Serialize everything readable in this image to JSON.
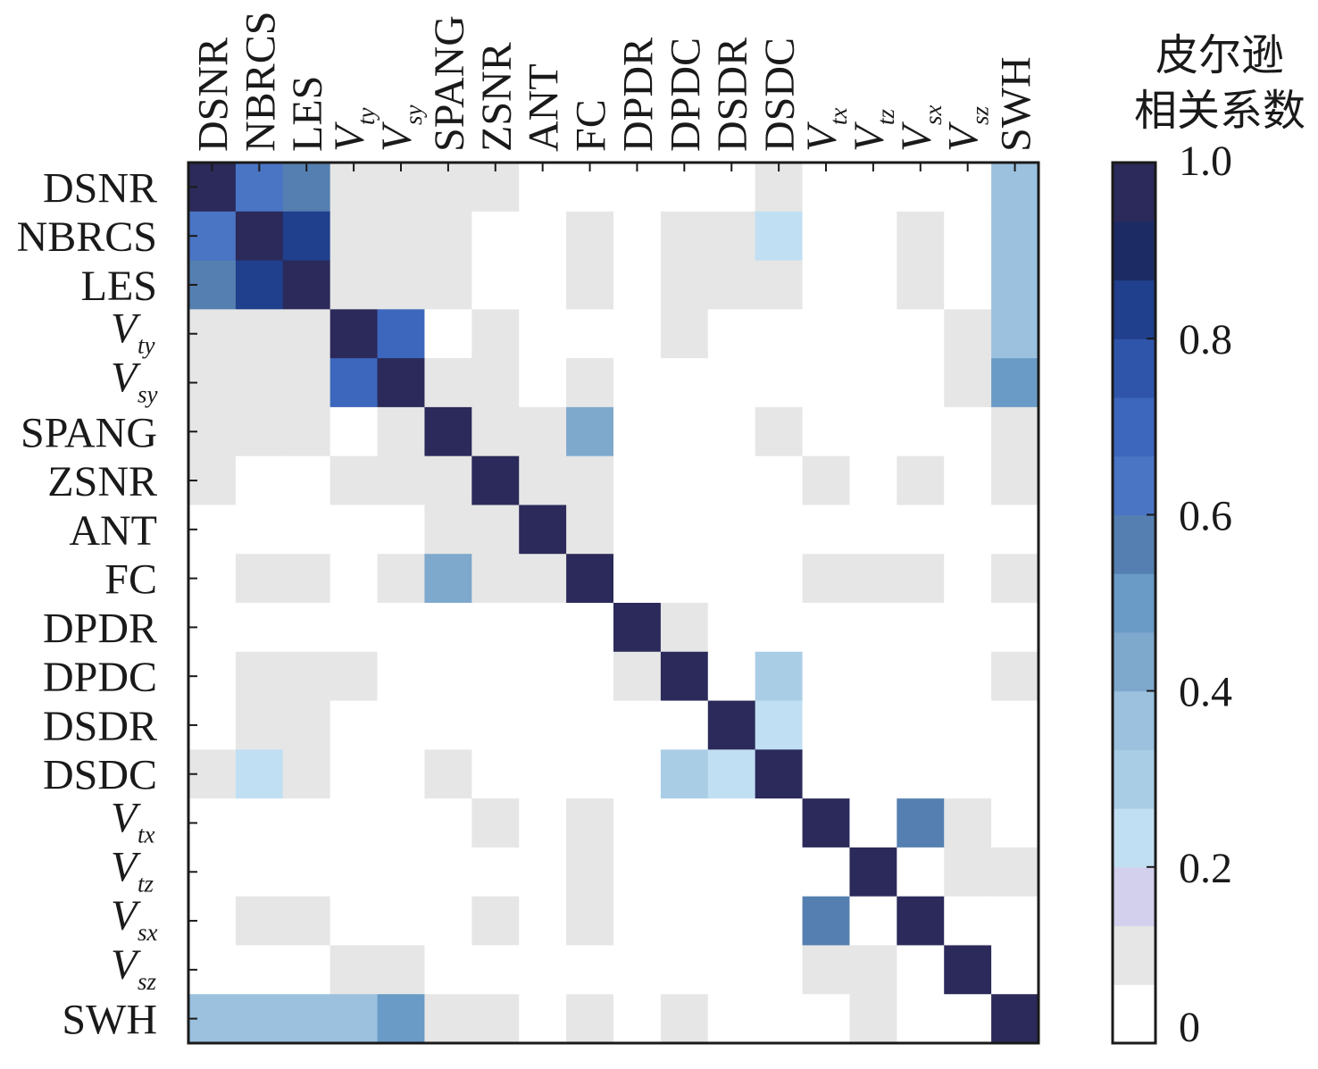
{
  "chart_data": {
    "type": "heatmap",
    "variables": [
      {
        "base": "DSNR",
        "sub": ""
      },
      {
        "base": "NBRCS",
        "sub": ""
      },
      {
        "base": "LES",
        "sub": ""
      },
      {
        "base": "V",
        "sub": "ty"
      },
      {
        "base": "V",
        "sub": "sy"
      },
      {
        "base": "SPANG",
        "sub": ""
      },
      {
        "base": "ZSNR",
        "sub": ""
      },
      {
        "base": "ANT",
        "sub": ""
      },
      {
        "base": "FC",
        "sub": ""
      },
      {
        "base": "DPDR",
        "sub": ""
      },
      {
        "base": "DPDC",
        "sub": ""
      },
      {
        "base": "DSDR",
        "sub": ""
      },
      {
        "base": "DSDC",
        "sub": ""
      },
      {
        "base": "V",
        "sub": "tx"
      },
      {
        "base": "V",
        "sub": "tz"
      },
      {
        "base": "V",
        "sub": "sx"
      },
      {
        "base": "V",
        "sub": "sz"
      },
      {
        "base": "SWH",
        "sub": ""
      }
    ],
    "matrix": [
      [
        1.0,
        0.65,
        0.55,
        0.1,
        0.1,
        0.1,
        0.1,
        0,
        0,
        0,
        0,
        0,
        0.1,
        0,
        0,
        0,
        0,
        0.35
      ],
      [
        0.65,
        1.0,
        0.85,
        0.1,
        0.1,
        0.1,
        0,
        0,
        0.1,
        0,
        0.1,
        0.1,
        0.2,
        0,
        0,
        0.1,
        0,
        0.35
      ],
      [
        0.55,
        0.85,
        1.0,
        0.1,
        0.1,
        0.1,
        0,
        0,
        0.1,
        0,
        0.1,
        0.1,
        0.1,
        0,
        0,
        0.1,
        0,
        0.35
      ],
      [
        0.1,
        0.1,
        0.1,
        1.0,
        0.7,
        0,
        0.1,
        0,
        0,
        0,
        0.1,
        0,
        0,
        0,
        0,
        0,
        0.1,
        0.35
      ],
      [
        0.1,
        0.1,
        0.1,
        0.7,
        1.0,
        0.1,
        0.1,
        0,
        0.1,
        0,
        0,
        0,
        0,
        0,
        0,
        0,
        0.1,
        0.5
      ],
      [
        0.1,
        0.1,
        0.1,
        0,
        0.1,
        1.0,
        0.1,
        0.1,
        0.4,
        0,
        0,
        0,
        0.1,
        0,
        0,
        0,
        0,
        0.1
      ],
      [
        0.1,
        0,
        0,
        0.1,
        0.1,
        0.1,
        1.0,
        0.1,
        0.1,
        0,
        0,
        0,
        0,
        0.1,
        0,
        0.1,
        0,
        0.1
      ],
      [
        0,
        0,
        0,
        0,
        0,
        0.1,
        0.1,
        1.0,
        0.1,
        0,
        0,
        0,
        0,
        0,
        0,
        0,
        0,
        0
      ],
      [
        0,
        0.1,
        0.1,
        0,
        0.1,
        0.4,
        0.1,
        0.1,
        1.0,
        0,
        0,
        0,
        0,
        0.1,
        0.1,
        0.1,
        0,
        0.1
      ],
      [
        0,
        0,
        0,
        0,
        0,
        0,
        0,
        0,
        0,
        1.0,
        0.1,
        0,
        0,
        0,
        0,
        0,
        0,
        0
      ],
      [
        0,
        0.1,
        0.1,
        0.1,
        0,
        0,
        0,
        0,
        0,
        0.1,
        1.0,
        0,
        0.3,
        0,
        0,
        0,
        0,
        0.1
      ],
      [
        0,
        0.1,
        0.1,
        0,
        0,
        0,
        0,
        0,
        0,
        0,
        0,
        1.0,
        0.2,
        0,
        0,
        0,
        0,
        0
      ],
      [
        0.1,
        0.2,
        0.1,
        0,
        0,
        0.1,
        0,
        0,
        0,
        0,
        0.3,
        0.2,
        1.0,
        0,
        0,
        0,
        0,
        0
      ],
      [
        0,
        0,
        0,
        0,
        0,
        0,
        0.1,
        0,
        0.1,
        0,
        0,
        0,
        0,
        1.0,
        0,
        0.55,
        0.1,
        0
      ],
      [
        0,
        0,
        0,
        0,
        0,
        0,
        0,
        0,
        0.1,
        0,
        0,
        0,
        0,
        0,
        1.0,
        0,
        0.1,
        0.1
      ],
      [
        0,
        0.1,
        0.1,
        0,
        0,
        0,
        0.1,
        0,
        0.1,
        0,
        0,
        0,
        0,
        0.55,
        0,
        1.0,
        0,
        0
      ],
      [
        0,
        0,
        0,
        0.1,
        0.1,
        0,
        0,
        0,
        0,
        0,
        0,
        0,
        0,
        0.1,
        0.1,
        0,
        1.0,
        0
      ],
      [
        0.35,
        0.35,
        0.35,
        0.35,
        0.5,
        0.1,
        0.1,
        0,
        0.1,
        0,
        0.1,
        0,
        0,
        0,
        0.1,
        0,
        0,
        1.0
      ]
    ],
    "colorbar": {
      "title_line1": "皮尔逊",
      "title_line2": "相关系数",
      "ticks": [
        1.0,
        0.8,
        0.6,
        0.4,
        0.2,
        0
      ],
      "tick_labels": [
        "1.0",
        "0.8",
        "0.6",
        "0.4",
        "0.2",
        "0"
      ],
      "range": [
        0,
        1.0
      ]
    },
    "colors": {
      "levels": [
        "#ffffff",
        "#e6e6e6",
        "#d2d0ec",
        "#c1dff2",
        "#aacde6",
        "#9bc1df",
        "#7ea8cc",
        "#6a9bc7",
        "#557fb0",
        "#4a74c4",
        "#3d67bd",
        "#2f55ab",
        "#203f8c",
        "#1c2b63",
        "#2b2a5a"
      ],
      "frame": "#1a1a1a"
    }
  }
}
